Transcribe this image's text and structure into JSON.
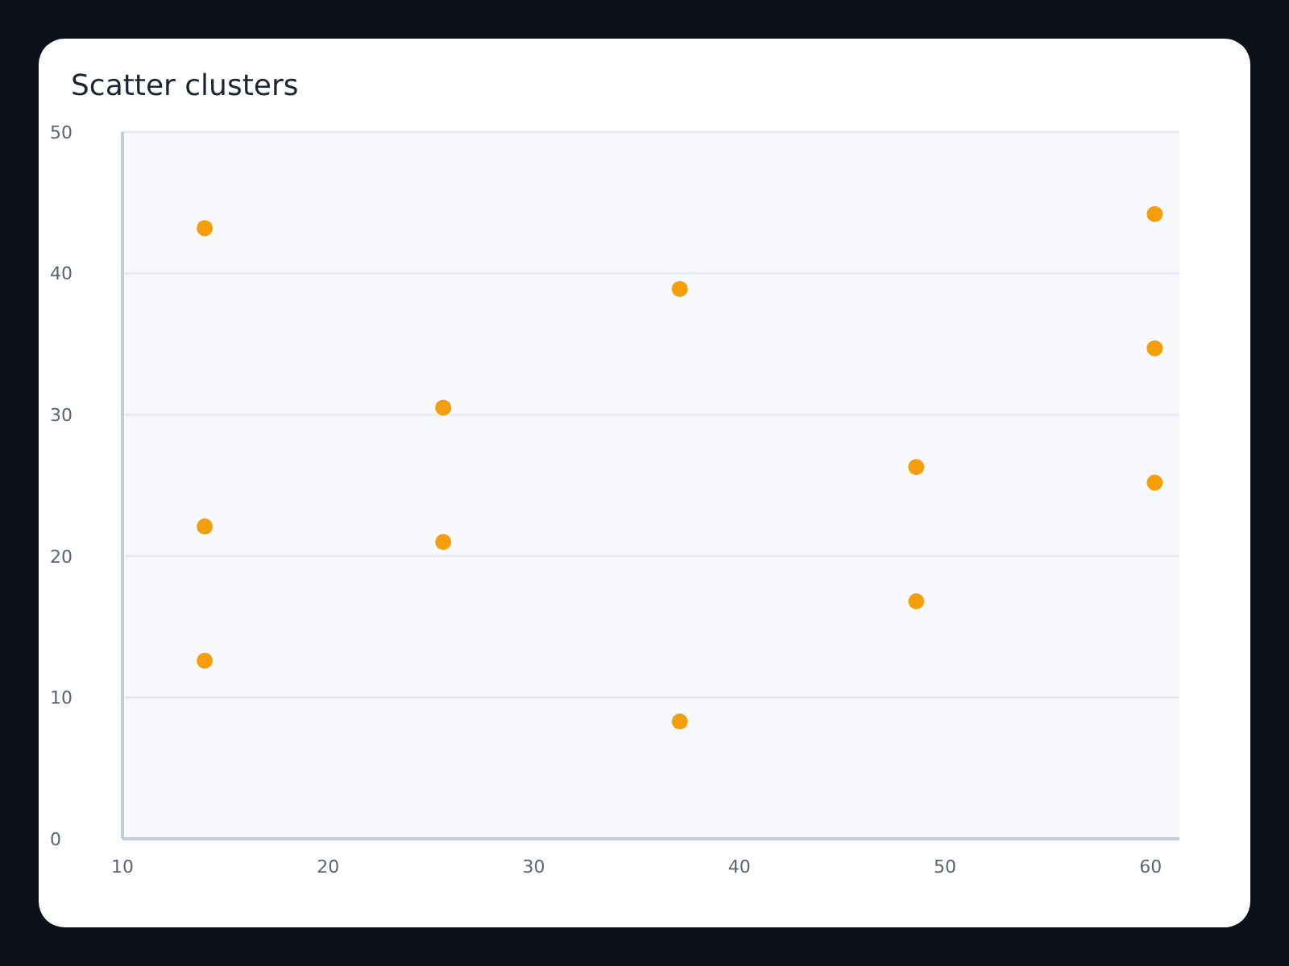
{
  "chart_data": {
    "type": "scatter",
    "title": "Scatter clusters",
    "x": [
      14,
      14,
      14,
      25.6,
      25.6,
      37.1,
      37.1,
      48.6,
      48.6,
      60.2,
      60.2,
      60.2
    ],
    "values": [
      43.2,
      22.1,
      12.6,
      30.5,
      21.0,
      38.9,
      8.3,
      26.3,
      16.8,
      44.2,
      34.7,
      25.2
    ],
    "color": "#f59e0b",
    "xlim": [
      10,
      61.4
    ],
    "xticks": [
      10,
      20,
      30,
      40,
      50,
      60
    ],
    "ylim": [
      0,
      50
    ],
    "yticks": [
      0,
      10,
      20,
      30,
      40,
      50
    ],
    "grid": "y",
    "marker": "circle"
  }
}
